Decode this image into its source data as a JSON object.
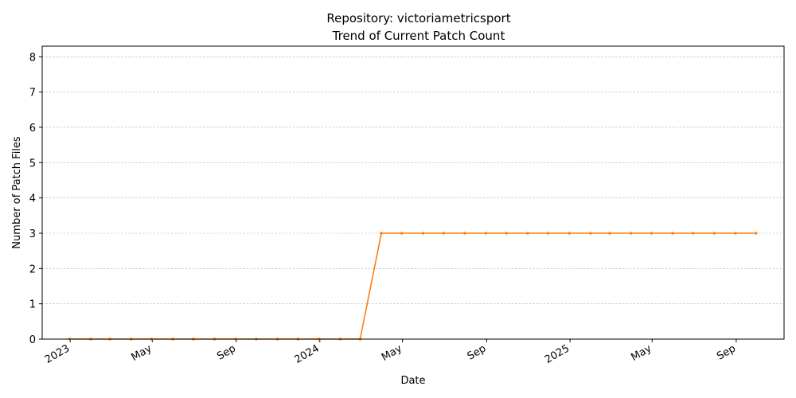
{
  "chart_data": {
    "type": "line",
    "title_line1": "Repository: victoriametricsport",
    "title_line2": "Trend of Current Patch Count",
    "xlabel": "Date",
    "ylabel": "Number of Patch Files",
    "ylim": [
      0,
      8.3
    ],
    "yticks": [
      0,
      1,
      2,
      3,
      4,
      5,
      6,
      7,
      8
    ],
    "xlim": [
      "2022-11-21",
      "2025-11-10"
    ],
    "xticks": [
      {
        "date": "2023-01-01",
        "label": "2023"
      },
      {
        "date": "2023-05-01",
        "label": "May"
      },
      {
        "date": "2023-09-01",
        "label": "Sep"
      },
      {
        "date": "2024-01-01",
        "label": "2024"
      },
      {
        "date": "2024-05-01",
        "label": "May"
      },
      {
        "date": "2024-09-01",
        "label": "Sep"
      },
      {
        "date": "2025-01-01",
        "label": "2025"
      },
      {
        "date": "2025-05-01",
        "label": "May"
      },
      {
        "date": "2025-09-01",
        "label": "Sep"
      }
    ],
    "grid": "horizontal",
    "color": "#ff7f0e",
    "series": [
      {
        "x": [
          "2022-12-31",
          "2023-01-31",
          "2023-02-28",
          "2023-03-31",
          "2023-04-30",
          "2023-05-31",
          "2023-06-30",
          "2023-07-31",
          "2023-08-31",
          "2023-09-30",
          "2023-10-31",
          "2023-11-30",
          "2023-12-31",
          "2024-01-31",
          "2024-02-29",
          "2024-03-31",
          "2024-04-30",
          "2024-05-31",
          "2024-06-30",
          "2024-07-31",
          "2024-08-31",
          "2024-09-30",
          "2024-10-31",
          "2024-11-30",
          "2024-12-31",
          "2025-01-31",
          "2025-02-28",
          "2025-03-31",
          "2025-04-30",
          "2025-05-31",
          "2025-06-30",
          "2025-07-31",
          "2025-08-31",
          "2025-09-30"
        ],
        "values": [
          0,
          0,
          0,
          0,
          0,
          0,
          0,
          0,
          0,
          0,
          0,
          0,
          0,
          0,
          0,
          3,
          3,
          3,
          3,
          3,
          3,
          3,
          3,
          3,
          3,
          3,
          3,
          3,
          3,
          3,
          3,
          3,
          3,
          3
        ]
      }
    ]
  }
}
